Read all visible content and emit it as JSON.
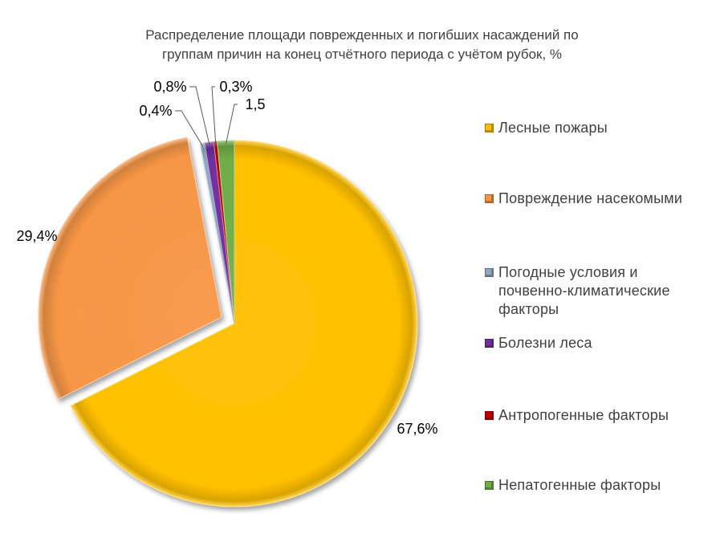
{
  "chart_data": {
    "type": "pie",
    "title_lines": [
      "Распределение площади  поврежденных  и погибших  насаждений  по",
      "группам  причин  на конец отчётного периода с учётом рубок, %"
    ],
    "categories": [
      "Лесные пожары",
      "Повреждение насекомыми",
      "Погодные условия и почвенно-климатические факторы",
      "Болезни леса",
      "Антропогенные факторы",
      "Непатогенные факторы"
    ],
    "legend_lines": [
      [
        "Лесные пожары"
      ],
      [
        "Повреждение насекомыми"
      ],
      [
        "Погодные условия и",
        "почвенно-климатические",
        "факторы"
      ],
      [
        "Болезни леса"
      ],
      [
        "Антропогенные факторы"
      ],
      [
        "Непатогенные факторы"
      ]
    ],
    "values": [
      67.6,
      29.4,
      0.4,
      0.8,
      0.3,
      1.5
    ],
    "data_labels": [
      "67,6%",
      "29,4%",
      "0,4%",
      "0,8%",
      "0,3%",
      "1,5"
    ],
    "colors": [
      "#FFC000",
      "#F79646",
      "#8EA9C1",
      "#7030A0",
      "#C00000",
      "#70AD47"
    ],
    "legend_position": "right",
    "exploded": true
  }
}
